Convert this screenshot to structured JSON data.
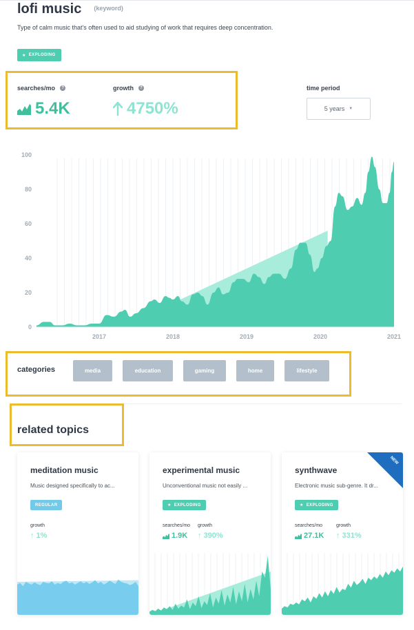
{
  "keyword": {
    "title": "lofi music",
    "type_tag": "(keyword)",
    "description": "Type of calm music that's often used to aid studying of work that requires deep concentration.",
    "badge": "EXPLODING"
  },
  "metrics": {
    "searches_label": "searches/mo",
    "searches_value": "5.4K",
    "growth_label": "growth",
    "growth_value": "4750%"
  },
  "time_period": {
    "label": "time period",
    "selected": "5 years"
  },
  "chart_data": {
    "type": "area",
    "x_ticks": [
      "2017",
      "2018",
      "2019",
      "2020",
      "2021"
    ],
    "y_ticks": [
      "0",
      "20",
      "40",
      "60",
      "80",
      "100"
    ],
    "ylim": [
      0,
      100
    ],
    "grid": "vertical",
    "x_range": [
      2016.15,
      2021.0
    ],
    "series": [
      {
        "values": [
          [
            2016.15,
            1
          ],
          [
            2016.25,
            3
          ],
          [
            2016.33,
            3
          ],
          [
            2016.4,
            1
          ],
          [
            2016.5,
            1
          ],
          [
            2016.6,
            2
          ],
          [
            2016.7,
            1
          ],
          [
            2016.8,
            1
          ],
          [
            2016.9,
            2
          ],
          [
            2017.0,
            2
          ],
          [
            2017.1,
            7
          ],
          [
            2017.2,
            6
          ],
          [
            2017.3,
            9
          ],
          [
            2017.35,
            10
          ],
          [
            2017.42,
            6
          ],
          [
            2017.5,
            8
          ],
          [
            2017.6,
            11
          ],
          [
            2017.7,
            15
          ],
          [
            2017.75,
            16
          ],
          [
            2017.82,
            14
          ],
          [
            2017.9,
            18
          ],
          [
            2017.95,
            17
          ],
          [
            2018.0,
            16
          ],
          [
            2018.07,
            18
          ],
          [
            2018.12,
            15
          ],
          [
            2018.2,
            13
          ],
          [
            2018.27,
            19
          ],
          [
            2018.34,
            20
          ],
          [
            2018.4,
            18
          ],
          [
            2018.47,
            13
          ],
          [
            2018.55,
            20
          ],
          [
            2018.62,
            23
          ],
          [
            2018.68,
            19
          ],
          [
            2018.75,
            20
          ],
          [
            2018.82,
            26
          ],
          [
            2018.88,
            28
          ],
          [
            2018.95,
            28
          ],
          [
            2019.03,
            26
          ],
          [
            2019.1,
            31
          ],
          [
            2019.17,
            29
          ],
          [
            2019.24,
            25
          ],
          [
            2019.3,
            29
          ],
          [
            2019.37,
            31
          ],
          [
            2019.44,
            31
          ],
          [
            2019.52,
            28
          ],
          [
            2019.6,
            34
          ],
          [
            2019.67,
            45
          ],
          [
            2019.73,
            49
          ],
          [
            2019.8,
            49
          ],
          [
            2019.86,
            42
          ],
          [
            2019.92,
            32
          ],
          [
            2019.96,
            34
          ],
          [
            2020.02,
            40
          ],
          [
            2020.08,
            47
          ],
          [
            2020.14,
            50
          ],
          [
            2020.2,
            70
          ],
          [
            2020.25,
            78
          ],
          [
            2020.3,
            76
          ],
          [
            2020.37,
            68
          ],
          [
            2020.43,
            70
          ],
          [
            2020.5,
            75
          ],
          [
            2020.56,
            71
          ],
          [
            2020.61,
            78
          ],
          [
            2020.65,
            90
          ],
          [
            2020.7,
            99
          ],
          [
            2020.74,
            93
          ],
          [
            2020.8,
            80
          ],
          [
            2020.85,
            72
          ],
          [
            2020.9,
            72
          ],
          [
            2020.94,
            78
          ],
          [
            2020.97,
            90
          ],
          [
            2021.0,
            96
          ]
        ]
      }
    ],
    "trend": {
      "from": [
        2017.3,
        3
      ],
      "to": [
        2020.1,
        56
      ]
    }
  },
  "categories": {
    "label": "categories",
    "items": [
      "media",
      "education",
      "gaming",
      "home",
      "lifestyle"
    ]
  },
  "related": {
    "title": "related topics",
    "cards": [
      {
        "title": "meditation music",
        "desc": "Music designed specifically to ac...",
        "badge": "REGULAR",
        "searches_label": "",
        "searches_value": "",
        "growth_label": "growth",
        "growth_value": "1%",
        "new": false,
        "chart_color": "#78cdee",
        "chart_values": [
          55,
          58,
          52,
          60,
          57,
          55,
          59,
          56,
          54,
          60,
          58,
          57,
          61,
          55,
          58,
          56,
          60,
          62,
          57,
          59,
          55,
          58,
          61,
          57,
          60,
          56,
          59,
          63,
          57,
          60,
          55,
          58,
          62,
          59,
          56,
          64,
          60,
          58,
          57,
          54,
          56,
          60,
          52
        ]
      },
      {
        "title": "experimental music",
        "desc": "Unconventional music not easily ...",
        "badge": "EXPLODING",
        "searches_label": "searches/mo",
        "searches_value": "1.9K",
        "growth_label": "growth",
        "growth_value": "390%",
        "new": false,
        "chart_color": "#4fcdb0",
        "chart_values": [
          5,
          8,
          6,
          10,
          7,
          12,
          9,
          14,
          8,
          18,
          10,
          15,
          12,
          25,
          9,
          20,
          14,
          30,
          11,
          22,
          16,
          35,
          12,
          28,
          18,
          40,
          15,
          33,
          20,
          45,
          17,
          38,
          22,
          50,
          20,
          42,
          25,
          55,
          30,
          70,
          60,
          95,
          40
        ]
      },
      {
        "title": "synthwave",
        "desc": "Electronic music sub-genre. It dr...",
        "badge": "EXPLODING",
        "searches_label": "searches/mo",
        "searches_value": "27.1K",
        "growth_label": "growth",
        "growth_value": "331%",
        "new": true,
        "new_label": "NEW",
        "chart_color": "#4fcdb0",
        "chart_values": [
          10,
          14,
          12,
          18,
          16,
          20,
          17,
          25,
          22,
          28,
          20,
          30,
          26,
          35,
          28,
          38,
          30,
          40,
          34,
          45,
          36,
          42,
          40,
          50,
          44,
          55,
          48,
          52,
          58,
          50,
          60,
          56,
          62,
          58,
          66,
          60,
          70,
          64,
          72,
          68,
          75,
          70,
          78
        ]
      }
    ]
  },
  "colors": {
    "accent": "#4fcdb0",
    "trend": "#a8ecdc",
    "highlight": "#ecbc2e",
    "chip": "#b3bfcb"
  }
}
